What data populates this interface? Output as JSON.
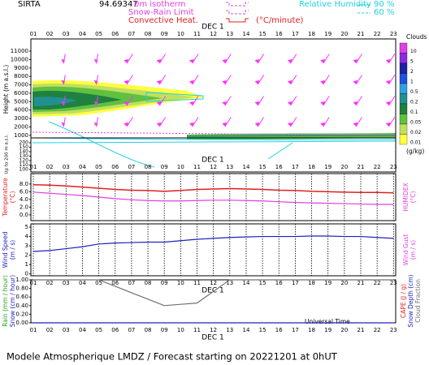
{
  "header": {
    "station": "SIRTA",
    "altitude": "94.69347",
    "isotherm": "0m isotherm",
    "snow_rain": "Snow-Rain Limit",
    "convective": "Convective Heat.",
    "convective_unit": "(°C/minute)",
    "rh_title": "Relative Humidity",
    "rh_high": "90 %",
    "rh_low": "60 %"
  },
  "x_title": "Universal Time",
  "footer": "Modele Atmospherique LMDZ / Forecast starting on 20221201 at 0hUT",
  "chart_data": [
    {
      "type": "contour",
      "date": "DEC  1",
      "categories": [
        "01",
        "02",
        "03",
        "04",
        "05",
        "06",
        "07",
        "08",
        "09",
        "10",
        "11",
        "12",
        "13",
        "14",
        "15",
        "16",
        "17",
        "18",
        "19",
        "20",
        "21",
        "22",
        "23"
      ],
      "ylabel": "Height  (m a.s.l.)",
      "ylabel_low": "Up to 200 m a.s.l.",
      "ylim": [
        700,
        12450
      ],
      "yticks": [
        11000,
        10000,
        9000,
        8000,
        7000,
        6000,
        5000,
        4000,
        3000,
        2000,
        1000
      ],
      "yticks_low": [
        200,
        150,
        140,
        130,
        120,
        110,
        100
      ],
      "colorbar": {
        "title": "Clouds",
        "unit": "(g/kg)",
        "levels": [
          10,
          5,
          2,
          1,
          0.5,
          0.2,
          0.1,
          0.05,
          0.02,
          0.01
        ],
        "colors": [
          "#e040e0",
          "#8a2be2",
          "#2020a0",
          "#2050e0",
          "#30a0e0",
          "#209090",
          "#208040",
          "#60c040",
          "#c0e060",
          "#ffff40"
        ]
      }
    },
    {
      "type": "line",
      "date": "DEC  1",
      "categories": [
        "01",
        "02",
        "03",
        "04",
        "05",
        "06",
        "07",
        "08",
        "09",
        "10",
        "11",
        "12",
        "13",
        "14",
        "15",
        "16",
        "17",
        "18",
        "19",
        "20",
        "21",
        "22",
        "23"
      ],
      "ylabel": "Temperature",
      "ylabel_unit": "(°C)",
      "y2label": "HUMIDEX",
      "y2label_unit": "(°C)",
      "ylim": [
        -1.5,
        10.7
      ],
      "yticks": [
        {
          "value": 8,
          "label": "8.0"
        },
        {
          "value": 6,
          "label": "6.0"
        },
        {
          "value": 4,
          "label": "4.0"
        },
        {
          "value": 2,
          "label": "2.0"
        },
        {
          "value": 0,
          "label": "0.0"
        }
      ],
      "series": [
        {
          "color": "#e02020",
          "values": [
            7.8,
            7.7,
            7.5,
            7.2,
            6.9,
            6.6,
            6.4,
            6.3,
            6.1,
            6.3,
            6.6,
            6.7,
            6.8,
            6.7,
            6.6,
            6.4,
            6.3,
            6.1,
            6.0,
            5.9,
            5.8,
            5.8,
            5.7
          ]
        },
        {
          "color": "#e040e0",
          "values": [
            5.9,
            5.6,
            5.3,
            5.0,
            4.6,
            4.2,
            3.9,
            3.7,
            3.6,
            3.6,
            3.7,
            3.8,
            3.8,
            3.7,
            3.6,
            3.4,
            3.2,
            3.1,
            3.0,
            2.9,
            2.8,
            2.7,
            2.7
          ]
        }
      ]
    },
    {
      "type": "line",
      "date": "DEC  1",
      "categories": [
        "01",
        "02",
        "03",
        "04",
        "05",
        "06",
        "07",
        "08",
        "09",
        "10",
        "11",
        "12",
        "13",
        "14",
        "15",
        "16",
        "17",
        "18",
        "19",
        "20",
        "21",
        "22",
        "23"
      ],
      "ylabel": "Wind Speed",
      "ylabel_unit": "(m / s)",
      "y2label": "Wind Gust",
      "y2label_unit": "(m / s)",
      "ylim": [
        -0.2,
        5.35
      ],
      "yticks": [
        5,
        4,
        3,
        2,
        1,
        0
      ],
      "series": [
        {
          "color": "#2020c0",
          "values": [
            2.4,
            2.5,
            2.7,
            2.9,
            3.2,
            3.3,
            3.35,
            3.4,
            3.4,
            3.55,
            3.7,
            3.8,
            3.9,
            3.95,
            4.0,
            4.0,
            4.0,
            4.05,
            4.05,
            4.0,
            4.0,
            3.9,
            3.8
          ]
        }
      ]
    },
    {
      "type": "line",
      "date": "DEC  1",
      "categories": [
        "01",
        "02",
        "03",
        "04",
        "05",
        "06",
        "07",
        "08",
        "09",
        "10",
        "11",
        "12",
        "13",
        "14",
        "15",
        "16",
        "17",
        "18",
        "19",
        "20",
        "21",
        "22",
        "23"
      ],
      "ylabel": "Rain (mm / hour)",
      "ylabel2": "Snow (cm / hour)",
      "y2label": "CAPE (J / g)",
      "y2label2": "Snow Depth (cm)",
      "ylim": [
        0,
        1.0
      ],
      "yticks": [
        {
          "value": 1,
          "label": "1.00"
        },
        {
          "value": 0.8,
          "label": "0.80"
        },
        {
          "value": 0.6,
          "label": "0.60"
        },
        {
          "value": 0.4,
          "label": "0.40"
        },
        {
          "value": 0.2,
          "label": "0.20"
        },
        {
          "value": 0,
          "label": "0.00"
        }
      ],
      "series": [
        {
          "name": "Cloud Fraction",
          "color": "#707070",
          "values": [
            1,
            1,
            1,
            1,
            1,
            0.85,
            0.7,
            0.55,
            0.4,
            0.43,
            0.46,
            0.73,
            1,
            1,
            1,
            1,
            1,
            1,
            1,
            1,
            1,
            1,
            1
          ]
        },
        {
          "color": "#2020c0",
          "values": [
            0,
            0,
            0,
            0,
            0,
            0,
            0,
            0,
            0,
            0,
            0,
            0,
            0,
            0,
            0,
            0,
            0,
            0,
            0,
            0,
            0,
            0,
            0
          ]
        }
      ]
    }
  ]
}
